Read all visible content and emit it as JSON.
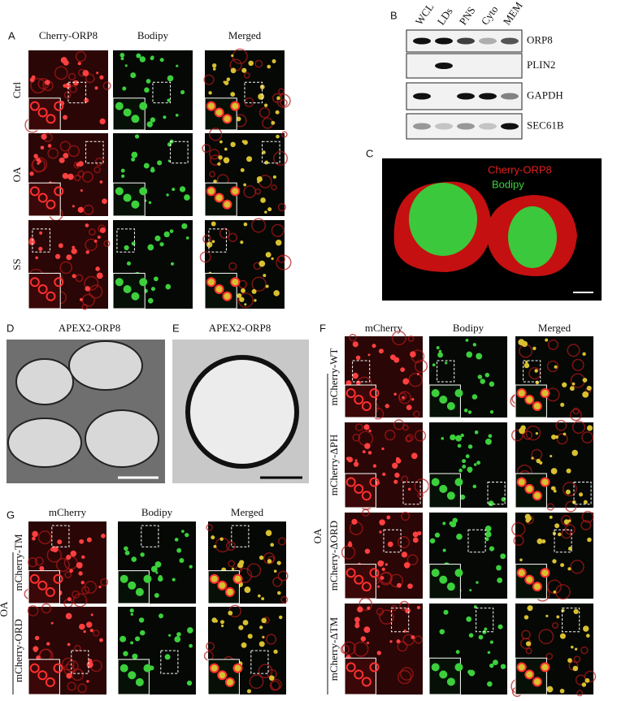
{
  "panel_a": {
    "letter": "A",
    "columns": [
      "Cherry-ORP8",
      "Bodipy",
      "Merged"
    ],
    "rows": [
      "Ctrl",
      "OA",
      "SS"
    ]
  },
  "panel_b": {
    "letter": "B",
    "lanes": [
      "WCL",
      "LDs",
      "PNS",
      "Cyto",
      "MEM"
    ],
    "bands": [
      "ORP8",
      "PLIN2",
      "GAPDH",
      "SEC61B"
    ]
  },
  "panel_c": {
    "letter": "C",
    "legend": [
      "Cherry-ORP8",
      "Bodipy"
    ]
  },
  "panel_d": {
    "letter": "D",
    "title": "APEX2-ORP8"
  },
  "panel_e": {
    "letter": "E",
    "title": "APEX2-ORP8"
  },
  "panel_f": {
    "letter": "F",
    "columns": [
      "mCherry",
      "Bodipy",
      "Merged"
    ],
    "rows": [
      "mCherry-WT",
      "mCherry-ΔPH",
      "mCherry-ΔORD",
      "mCherry-ΔTM"
    ],
    "condition": "OA"
  },
  "panel_g": {
    "letter": "G",
    "columns": [
      "mCherry",
      "Bodipy",
      "Merged"
    ],
    "rows": [
      "mCherry-TM",
      "mCherry-ORD"
    ],
    "condition": "OA"
  }
}
